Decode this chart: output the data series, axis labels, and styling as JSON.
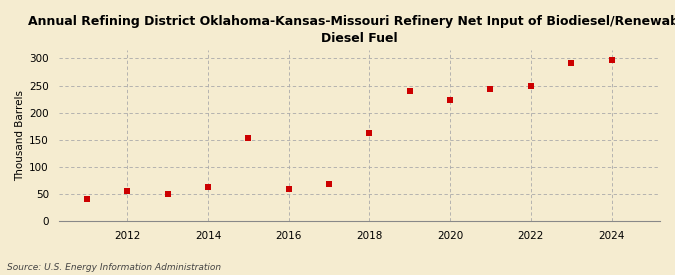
{
  "title": "Annual Refining District Oklahoma-Kansas-Missouri Refinery Net Input of Biodiesel/Renewable\nDiesel Fuel",
  "ylabel": "Thousand Barrels",
  "source": "Source: U.S. Energy Information Administration",
  "years": [
    2011,
    2012,
    2013,
    2014,
    2015,
    2016,
    2017,
    2018,
    2019,
    2020,
    2021,
    2022,
    2023,
    2024
  ],
  "values": [
    40,
    55,
    50,
    63,
    153,
    60,
    68,
    163,
    240,
    223,
    244,
    249,
    291,
    298
  ],
  "marker_color": "#cc0000",
  "marker": "s",
  "marker_size": 18,
  "bg_color": "#f5ecd0",
  "plot_bg_color": "#f5ecd0",
  "grid_color": "#aaaaaa",
  "ylim": [
    0,
    315
  ],
  "yticks": [
    0,
    50,
    100,
    150,
    200,
    250,
    300
  ],
  "xlim": [
    2010.3,
    2025.2
  ],
  "xticks": [
    2012,
    2014,
    2016,
    2018,
    2020,
    2022,
    2024
  ],
  "title_fontsize": 9,
  "label_fontsize": 7.5,
  "tick_fontsize": 7.5,
  "source_fontsize": 6.5
}
